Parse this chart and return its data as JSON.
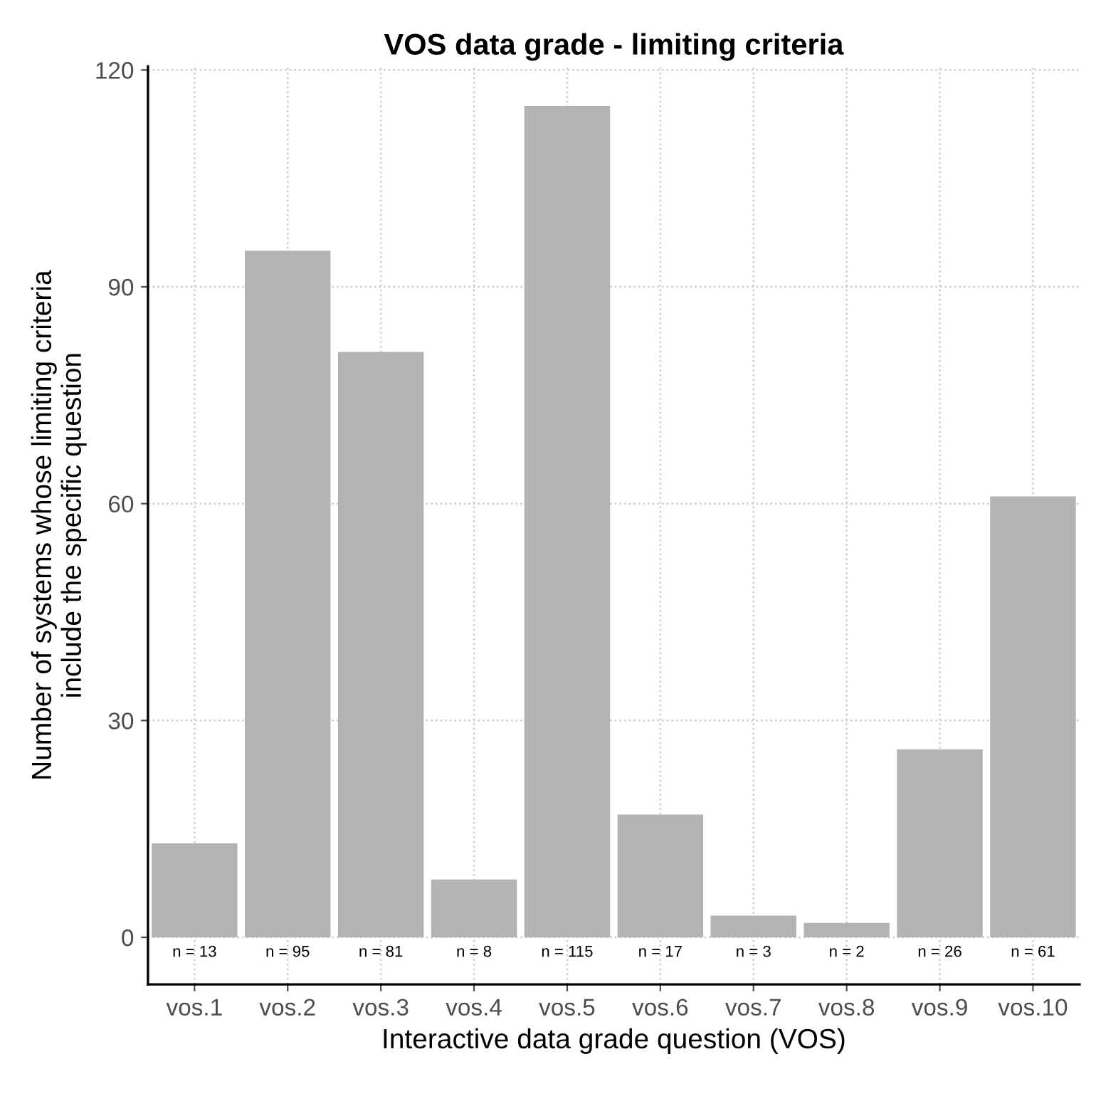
{
  "chart_data": {
    "type": "bar",
    "title": "VOS data grade - limiting criteria",
    "xlabel": "Interactive data grade question (VOS)",
    "ylabel": "Number of systems whose limiting criteria\ninclude the specific question",
    "categories": [
      "vos.1",
      "vos.2",
      "vos.3",
      "vos.4",
      "vos.5",
      "vos.6",
      "vos.7",
      "vos.8",
      "vos.9",
      "vos.10"
    ],
    "values": [
      13,
      95,
      81,
      8,
      115,
      17,
      3,
      2,
      26,
      61
    ],
    "value_labels": [
      "n = 13",
      "n = 95",
      "n = 81",
      "n = 8",
      "n = 115",
      "n = 17",
      "n = 3",
      "n = 2",
      "n = 26",
      "n = 61"
    ],
    "color": "#b3b3b3",
    "ylim": [
      -6.5,
      120.5
    ],
    "yticks": [
      0,
      30,
      60,
      90,
      120
    ],
    "grid": true,
    "legend": false
  }
}
